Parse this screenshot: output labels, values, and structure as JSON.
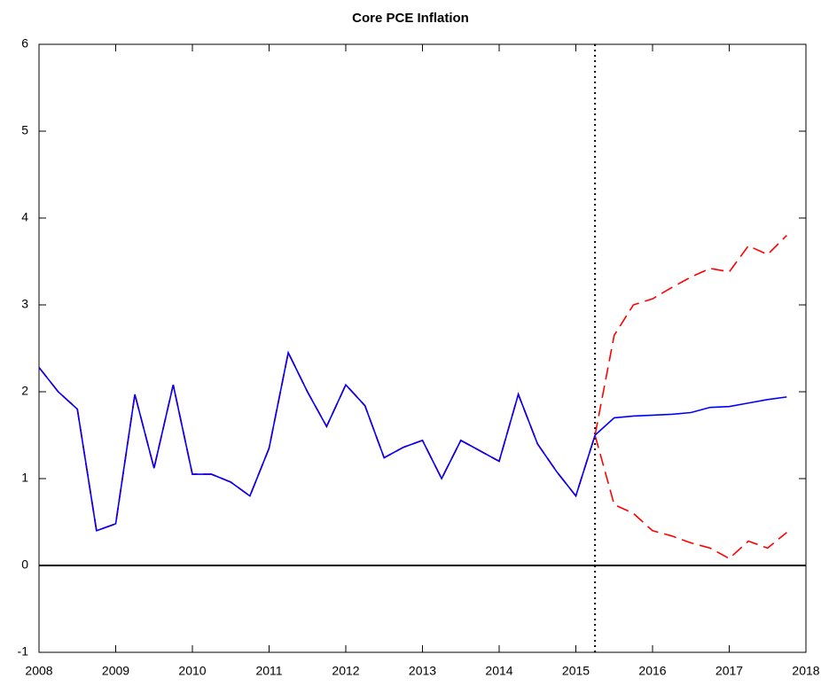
{
  "chart_data": {
    "type": "line",
    "title": "Core PCE Inflation",
    "x": [
      2008,
      2008.25,
      2008.5,
      2008.75,
      2009,
      2009.25,
      2009.5,
      2009.75,
      2010,
      2010.25,
      2010.5,
      2010.75,
      2011,
      2011.25,
      2011.5,
      2011.75,
      2012,
      2012.25,
      2012.5,
      2012.75,
      2013,
      2013.25,
      2013.5,
      2013.75,
      2014,
      2014.25,
      2014.5,
      2014.75,
      2015,
      2015.25,
      2015.5,
      2015.75,
      2016,
      2016.25,
      2016.5,
      2016.75,
      2017,
      2017.25,
      2017.5,
      2017.75
    ],
    "series": [
      {
        "color": "#0000ff",
        "dashed": false,
        "values": [
          2.28,
          2.0,
          1.8,
          0.4,
          0.48,
          1.97,
          1.12,
          2.08,
          1.05,
          1.05,
          0.96,
          0.8,
          1.35,
          2.45,
          2.0,
          1.6,
          2.08,
          1.84,
          1.24,
          1.36,
          1.44,
          1.0,
          1.44,
          1.32,
          1.2,
          1.97,
          1.4,
          1.08,
          0.8,
          1.5,
          1.7,
          1.72,
          1.73,
          1.74,
          1.76,
          1.82,
          1.83,
          1.87,
          1.91,
          1.94
        ]
      },
      {
        "color": "#ff0000",
        "dashed": true,
        "values": [
          2.28,
          2.0,
          1.8,
          0.4,
          0.48,
          1.97,
          1.12,
          2.08,
          1.05,
          1.05,
          0.96,
          0.8,
          1.35,
          2.45,
          2.0,
          1.6,
          2.08,
          1.84,
          1.24,
          1.36,
          1.44,
          1.0,
          1.44,
          1.32,
          1.2,
          1.97,
          1.4,
          1.08,
          0.8,
          1.5,
          2.65,
          3.0,
          3.07,
          3.2,
          3.32,
          3.42,
          3.38,
          3.68,
          3.58,
          3.8
        ]
      },
      {
        "color": "#ff0000",
        "dashed": true,
        "values": [
          2.28,
          2.0,
          1.8,
          0.4,
          0.48,
          1.97,
          1.12,
          2.08,
          1.05,
          1.05,
          0.96,
          0.8,
          1.35,
          2.45,
          2.0,
          1.6,
          2.08,
          1.84,
          1.24,
          1.36,
          1.44,
          1.0,
          1.44,
          1.32,
          1.2,
          1.97,
          1.4,
          1.08,
          0.8,
          1.5,
          0.7,
          0.6,
          0.4,
          0.34,
          0.26,
          0.2,
          0.08,
          0.28,
          0.2,
          0.38
        ]
      }
    ],
    "xlim": [
      2008,
      2018
    ],
    "xticks": [
      2008,
      2009,
      2010,
      2011,
      2012,
      2013,
      2014,
      2015,
      2016,
      2017,
      2018
    ],
    "ylim": [
      -1,
      6
    ],
    "yticks": [
      -1,
      0,
      1,
      2,
      3,
      4,
      5,
      6
    ],
    "hline": 0,
    "vline": 2015.25,
    "grid": false
  }
}
